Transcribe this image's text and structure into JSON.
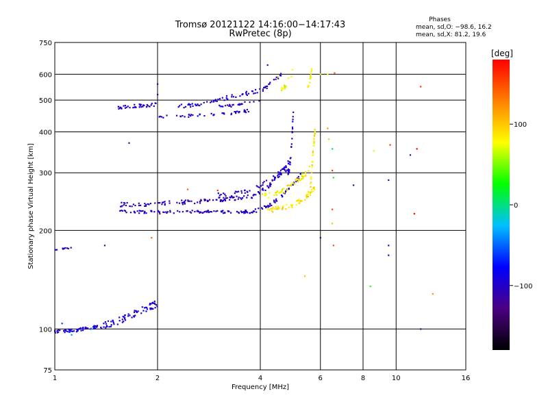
{
  "chart_data": {
    "type": "scatter",
    "title": "Tromsø 20121122 14:16:00−14:17:43",
    "subtitle": "RwPretec (8p)",
    "info_title": "Phases",
    "info_line1": "mean, sd,O: −98.6, 16.2",
    "info_line2": "mean, sd,X:  81.2, 19.6",
    "xlabel": "Frequency [MHz]",
    "ylabel": "Stationary phase Virtual Height [km]",
    "x_scale": "log",
    "y_scale": "log",
    "xlim": [
      1,
      16
    ],
    "ylim": [
      75,
      750
    ],
    "x_ticks": [
      1,
      2,
      4,
      6,
      8,
      10,
      16
    ],
    "x_tick_labels": [
      "1",
      "2",
      "4",
      "6",
      "8",
      "10",
      "16"
    ],
    "x_grid": [
      2,
      4,
      6,
      8,
      10
    ],
    "y_ticks": [
      75,
      100,
      200,
      300,
      400,
      500,
      600,
      750
    ],
    "y_tick_labels": [
      "75",
      "100",
      "200",
      "300",
      "400",
      "500",
      "600",
      "750"
    ],
    "y_grid": [
      100,
      200,
      300,
      400,
      500,
      600
    ],
    "grid": true,
    "colorbar": {
      "label": "[deg]",
      "range": [
        -180,
        180
      ],
      "ticks": [
        100,
        0,
        -100
      ],
      "tick_labels": [
        "100",
        "0",
        "−100"
      ],
      "colors": [
        "#000000",
        "#4b0082",
        "#0000ff",
        "#00bfff",
        "#00ff00",
        "#ffff00",
        "#ff8000",
        "#ff0000"
      ]
    },
    "traces": [
      {
        "f0": 1.0,
        "f1": 1.35,
        "h0": 98,
        "h1": 102,
        "hpow": 1.5,
        "phase": -95,
        "n": 60,
        "jit": 0.012
      },
      {
        "f0": 1.35,
        "f1": 2.0,
        "h0": 102,
        "h1": 120,
        "hpow": 1.3,
        "phase": -95,
        "n": 70,
        "jit": 0.025
      },
      {
        "f0": 1.0,
        "f1": 1.12,
        "h0": 175,
        "h1": 177,
        "hpow": 1,
        "phase": -100,
        "n": 10,
        "jit": 0.004
      },
      {
        "f0": 1.55,
        "f1": 3.6,
        "h0": 228,
        "h1": 228,
        "hpow": 1,
        "phase": -100,
        "n": 90,
        "jit": 0.01
      },
      {
        "f0": 3.6,
        "f1": 5.3,
        "h0": 228,
        "h1": 300,
        "hpow": 2.2,
        "phase": -100,
        "n": 60,
        "jit": 0.012
      },
      {
        "f0": 1.55,
        "f1": 3.5,
        "h0": 240,
        "h1": 252,
        "hpow": 1.8,
        "phase": -105,
        "n": 90,
        "jit": 0.015
      },
      {
        "f0": 3.5,
        "f1": 4.9,
        "h0": 252,
        "h1": 330,
        "hpow": 2.2,
        "phase": -100,
        "n": 55,
        "jit": 0.015
      },
      {
        "f0": 3.0,
        "f1": 4.8,
        "h0": 255,
        "h1": 310,
        "hpow": 2.0,
        "phase": -100,
        "n": 45,
        "jit": 0.02
      },
      {
        "f0": 4.8,
        "f1": 5.0,
        "h0": 300,
        "h1": 470,
        "hpow": 2.5,
        "phase": -100,
        "n": 30,
        "jit": 0.02
      },
      {
        "f0": 4.2,
        "f1": 5.8,
        "h0": 232,
        "h1": 270,
        "hpow": 2.5,
        "phase": 85,
        "n": 60,
        "jit": 0.02
      },
      {
        "f0": 4.0,
        "f1": 5.6,
        "h0": 255,
        "h1": 310,
        "hpow": 2.2,
        "phase": 85,
        "n": 55,
        "jit": 0.02
      },
      {
        "f0": 5.6,
        "f1": 5.8,
        "h0": 270,
        "h1": 420,
        "hpow": 1.2,
        "phase": 85,
        "n": 30,
        "jit": 0.03
      },
      {
        "f0": 1.5,
        "f1": 2.0,
        "h0": 475,
        "h1": 485,
        "hpow": 1,
        "phase": -100,
        "n": 40,
        "jit": 0.012
      },
      {
        "f0": 2.3,
        "f1": 3.6,
        "h0": 480,
        "h1": 525,
        "hpow": 1.5,
        "phase": -100,
        "n": 45,
        "jit": 0.015
      },
      {
        "f0": 3.6,
        "f1": 4.6,
        "h0": 525,
        "h1": 600,
        "hpow": 2.2,
        "phase": -100,
        "n": 30,
        "jit": 0.015
      },
      {
        "f0": 2.0,
        "f1": 2.8,
        "h0": 445,
        "h1": 450,
        "hpow": 1,
        "phase": -100,
        "n": 20,
        "jit": 0.01
      },
      {
        "f0": 2.8,
        "f1": 3.7,
        "h0": 450,
        "h1": 465,
        "hpow": 1.5,
        "phase": -100,
        "n": 25,
        "jit": 0.01
      },
      {
        "f0": 3.0,
        "f1": 4.0,
        "h0": 478,
        "h1": 500,
        "hpow": 1.5,
        "phase": -100,
        "n": 25,
        "jit": 0.01
      },
      {
        "f0": 4.6,
        "f1": 5.0,
        "h0": 540,
        "h1": 615,
        "hpow": 1.5,
        "phase": 80,
        "n": 14,
        "jit": 0.02
      },
      {
        "f0": 5.5,
        "f1": 5.7,
        "h0": 540,
        "h1": 640,
        "hpow": 1.2,
        "phase": 85,
        "n": 14,
        "jit": 0.02
      }
    ],
    "scatter": [
      [
        1.1,
        98,
        -60
      ],
      [
        1.12,
        96,
        -40
      ],
      [
        1.28,
        100,
        -30
      ],
      [
        1.05,
        104,
        -60
      ],
      [
        2.0,
        560,
        -110
      ],
      [
        2.0,
        520,
        -100
      ],
      [
        1.65,
        370,
        -110
      ],
      [
        1.92,
        190,
        140
      ],
      [
        1.4,
        180,
        -110
      ],
      [
        2.03,
        225,
        -120
      ],
      [
        2.45,
        267,
        140
      ],
      [
        3.0,
        265,
        160
      ],
      [
        6.0,
        190,
        -100
      ],
      [
        6.0,
        600,
        70
      ],
      [
        6.3,
        600,
        75
      ],
      [
        6.3,
        410,
        120
      ],
      [
        6.35,
        380,
        100
      ],
      [
        6.5,
        355,
        10
      ],
      [
        6.5,
        305,
        160
      ],
      [
        6.55,
        290,
        20
      ],
      [
        6.5,
        232,
        150
      ],
      [
        6.5,
        210,
        100
      ],
      [
        6.55,
        180,
        150
      ],
      [
        6.6,
        605,
        150
      ],
      [
        7.5,
        275,
        -120
      ],
      [
        8.4,
        135,
        30
      ],
      [
        8.6,
        350,
        70
      ],
      [
        9.5,
        180,
        -100
      ],
      [
        9.5,
        168,
        -100
      ],
      [
        9.5,
        285,
        -100
      ],
      [
        9.6,
        365,
        160
      ],
      [
        11.0,
        340,
        -130
      ],
      [
        11.3,
        225,
        180
      ],
      [
        11.5,
        355,
        180
      ],
      [
        11.8,
        550,
        160
      ],
      [
        12.8,
        128,
        120
      ],
      [
        11.8,
        100,
        -100
      ],
      [
        5.4,
        145,
        100
      ],
      [
        4.2,
        640,
        -100
      ],
      [
        4.5,
        590,
        60
      ]
    ]
  }
}
